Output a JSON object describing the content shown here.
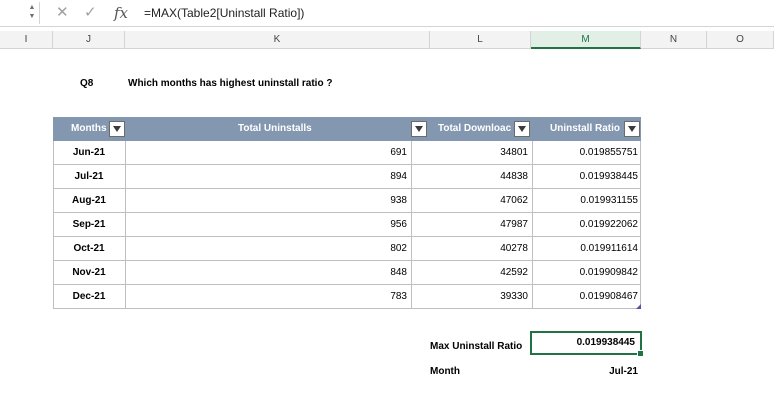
{
  "formula_bar": {
    "formula": "=MAX(Table2[Uninstall Ratio])",
    "fx_label": "fx",
    "cancel_glyph": "✕",
    "enter_glyph": "✓",
    "spin_up": "▲",
    "spin_down": "▼"
  },
  "columns": [
    {
      "label": "I"
    },
    {
      "label": "J"
    },
    {
      "label": "K"
    },
    {
      "label": "L"
    },
    {
      "label": "M",
      "selected": true
    },
    {
      "label": "N"
    },
    {
      "label": "O"
    }
  ],
  "question": {
    "number": "Q8",
    "text": "Which months has highest uninstall ratio ?"
  },
  "table": {
    "headers": [
      "Months",
      "Total Uninstalls",
      "Total Downloac",
      "Uninstall Ratio"
    ],
    "rows": [
      {
        "month": "Jun-21",
        "uninstalls": "691",
        "downloads": "34801",
        "ratio": "0.019855751"
      },
      {
        "month": "Jul-21",
        "uninstalls": "894",
        "downloads": "44838",
        "ratio": "0.019938445"
      },
      {
        "month": "Aug-21",
        "uninstalls": "938",
        "downloads": "47062",
        "ratio": "0.019931155"
      },
      {
        "month": "Sep-21",
        "uninstalls": "956",
        "downloads": "47987",
        "ratio": "0.019922062"
      },
      {
        "month": "Oct-21",
        "uninstalls": "802",
        "downloads": "40278",
        "ratio": "0.019911614"
      },
      {
        "month": "Nov-21",
        "uninstalls": "848",
        "downloads": "42592",
        "ratio": "0.019909842"
      },
      {
        "month": "Dec-21",
        "uninstalls": "783",
        "downloads": "39330",
        "ratio": "0.019908467"
      }
    ],
    "header_color": "#8497b0"
  },
  "summary": {
    "max_label": "Max Uninstall Ratio",
    "max_value": "0.019938445",
    "month_label": "Month",
    "month_value": "Jul-21"
  },
  "colors": {
    "accent": "#217346"
  }
}
